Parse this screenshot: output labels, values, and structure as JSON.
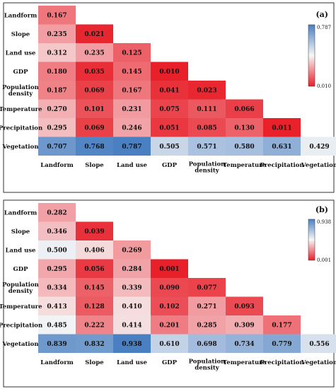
{
  "chart_data": [
    {
      "type": "heatmap",
      "panel_label": "(a)",
      "row_labels": [
        "Landform",
        "Slope",
        "Land use",
        "GDP",
        [
          "Population",
          "density"
        ],
        "Temperature",
        "Precipitation",
        "Vegetation"
      ],
      "col_labels": [
        "Landform",
        "Slope",
        "Land use",
        "GDP",
        [
          "Population",
          "density"
        ],
        "Temperature",
        "Precipitation",
        "Vegetation"
      ],
      "values": [
        [
          0.167
        ],
        [
          0.235,
          0.021
        ],
        [
          0.312,
          0.235,
          0.125
        ],
        [
          0.18,
          0.035,
          0.145,
          0.01
        ],
        [
          0.187,
          0.069,
          0.167,
          0.041,
          0.023
        ],
        [
          0.27,
          0.101,
          0.231,
          0.075,
          0.111,
          0.066
        ],
        [
          0.295,
          0.069,
          0.246,
          0.051,
          0.085,
          0.13,
          0.011
        ],
        [
          0.707,
          0.768,
          0.787,
          0.505,
          0.571,
          0.58,
          0.631,
          0.429
        ]
      ],
      "value_labels": [
        [
          "0.167"
        ],
        [
          "0.235",
          "0.021"
        ],
        [
          "0.312",
          "0.235",
          "0.125"
        ],
        [
          "0.180",
          "0.035",
          "0.145",
          "0.010"
        ],
        [
          "0.187",
          "0.069",
          "0.167",
          "0.041",
          "0.023"
        ],
        [
          "0.270",
          "0.101",
          "0.231",
          "0.075",
          "0.111",
          "0.066"
        ],
        [
          "0.295",
          "0.069",
          "0.246",
          "0.051",
          "0.085",
          "0.130",
          "0.011"
        ],
        [
          "0.707",
          "0.768",
          "0.787",
          "0.505",
          "0.571",
          "0.580",
          "0.631",
          "0.429"
        ]
      ],
      "color_scale": {
        "min": 0.01,
        "max": 0.787,
        "min_label": "0.010",
        "max_label": "0.787"
      }
    },
    {
      "type": "heatmap",
      "panel_label": "(b)",
      "row_labels": [
        "Landform",
        "Slope",
        "Land use",
        "GDP",
        [
          "Population",
          "density"
        ],
        "Temperature",
        "Precipitation",
        "Vegetation"
      ],
      "col_labels": [
        "Landform",
        "Slope",
        "Land use",
        "GDP",
        [
          "Population",
          "density"
        ],
        "Temperature",
        "Precipitation",
        "Vegetation"
      ],
      "values": [
        [
          0.282
        ],
        [
          0.346,
          0.039
        ],
        [
          0.5,
          0.406,
          0.269
        ],
        [
          0.295,
          0.056,
          0.284,
          0.001
        ],
        [
          0.334,
          0.145,
          0.339,
          0.09,
          0.077
        ],
        [
          0.413,
          0.128,
          0.41,
          0.102,
          0.271,
          0.093
        ],
        [
          0.485,
          0.222,
          0.414,
          0.201,
          0.285,
          0.309,
          0.177
        ],
        [
          0.839,
          0.832,
          0.938,
          0.61,
          0.698,
          0.734,
          0.779,
          0.556
        ]
      ],
      "value_labels": [
        [
          "0.282"
        ],
        [
          "0.346",
          "0.039"
        ],
        [
          "0.500",
          "0.406",
          "0.269"
        ],
        [
          "0.295",
          "0.056",
          "0.284",
          "0.001"
        ],
        [
          "0.334",
          "0.145",
          "0.339",
          "0.090",
          "0.077"
        ],
        [
          "0.413",
          "0.128",
          "0.410",
          "0.102",
          "0.271",
          "0.093"
        ],
        [
          "0.485",
          "0.222",
          "0.414",
          "0.201",
          "0.285",
          "0.309",
          "0.177"
        ],
        [
          "0.839",
          "0.832",
          "0.938",
          "0.610",
          "0.698",
          "0.734",
          "0.779",
          "0.556"
        ]
      ],
      "color_scale": {
        "min": 0.001,
        "max": 0.938,
        "min_label": "0.001",
        "max_label": "0.938"
      }
    }
  ],
  "colors": {
    "low": "#e8202a",
    "mid": "#f7f7f7",
    "high": "#4a7fc1"
  }
}
